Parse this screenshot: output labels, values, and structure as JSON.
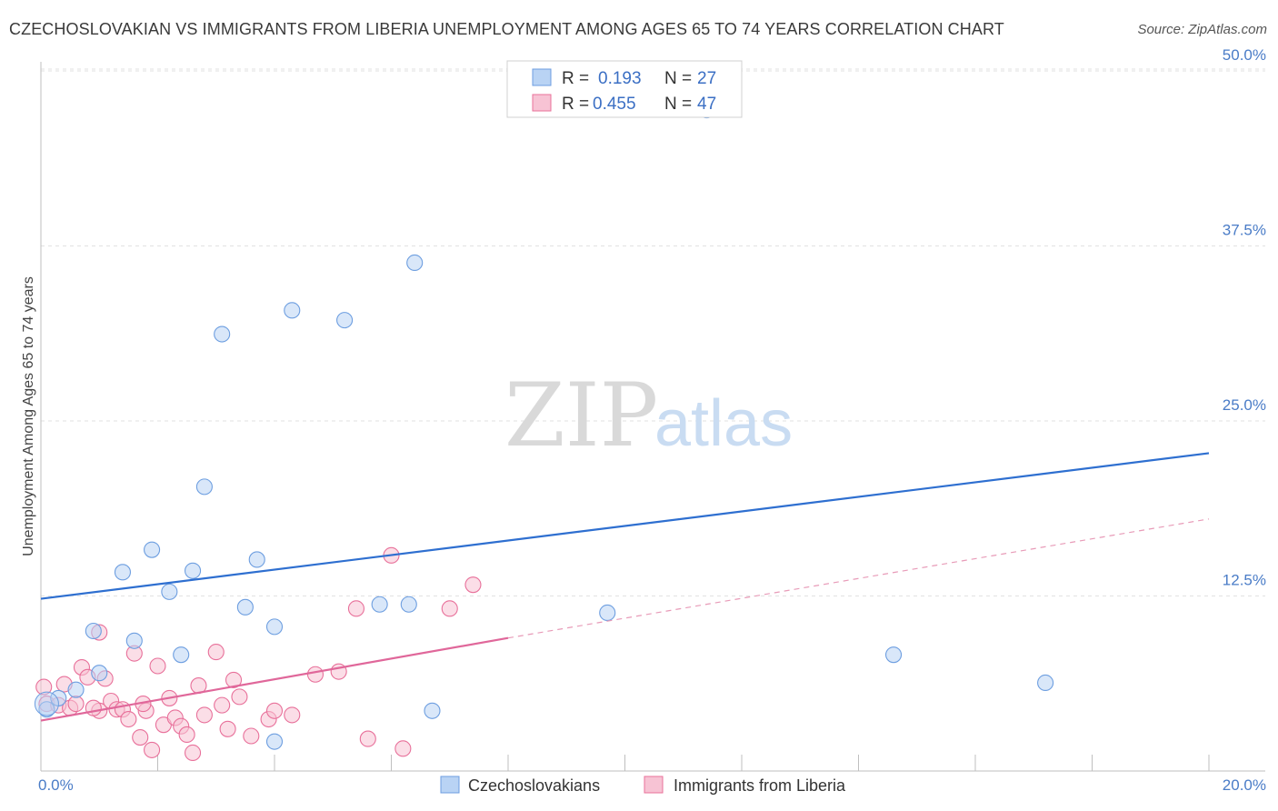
{
  "title": "CZECHOSLOVAKIAN VS IMMIGRANTS FROM LIBERIA UNEMPLOYMENT AMONG AGES 65 TO 74 YEARS CORRELATION CHART",
  "source": "Source: ZipAtlas.com",
  "watermark": {
    "zip": "ZIP",
    "atlas": "atlas"
  },
  "chart_data": {
    "type": "scatter",
    "title": "CZECHOSLOVAKIAN VS IMMIGRANTS FROM LIBERIA UNEMPLOYMENT AMONG AGES 65 TO 74 YEARS CORRELATION CHART",
    "xlabel": "",
    "ylabel": "Unemployment Among Ages 65 to 74 years",
    "xlim": [
      0,
      20
    ],
    "ylim": [
      0,
      50
    ],
    "x_tick_labels": [
      "0.0%",
      "20.0%"
    ],
    "y_ticks": [
      12.5,
      25.0,
      37.5,
      50.0
    ],
    "y_tick_labels": [
      "12.5%",
      "25.0%",
      "37.5%",
      "50.0%"
    ],
    "grid": true,
    "legend_placement": "top-center",
    "legend": [
      {
        "r_label": "R =",
        "r_value": "0.193",
        "n_label": "N =",
        "n_value": "27"
      },
      {
        "r_label": "R =",
        "r_value": "0.455",
        "n_label": "N =",
        "n_value": "47"
      }
    ],
    "series": [
      {
        "name": "Czechoslovakians",
        "color": "#6d9ee0",
        "fill": "#b9d3f4",
        "trend": {
          "x": [
            0,
            20
          ],
          "y": [
            12.3,
            22.7
          ],
          "dashed_from": null
        },
        "points": [
          [
            0.1,
            4.4
          ],
          [
            0.3,
            5.2
          ],
          [
            0.6,
            5.8
          ],
          [
            0.9,
            10.0
          ],
          [
            1.0,
            7.0
          ],
          [
            1.4,
            14.2
          ],
          [
            1.6,
            9.3
          ],
          [
            1.9,
            15.8
          ],
          [
            2.2,
            12.8
          ],
          [
            2.4,
            8.3
          ],
          [
            2.6,
            14.3
          ],
          [
            2.8,
            20.3
          ],
          [
            3.1,
            31.2
          ],
          [
            3.5,
            11.7
          ],
          [
            3.7,
            15.1
          ],
          [
            4.0,
            2.1
          ],
          [
            4.0,
            10.3
          ],
          [
            4.3,
            32.9
          ],
          [
            5.2,
            32.2
          ],
          [
            5.8,
            11.9
          ],
          [
            6.3,
            11.9
          ],
          [
            6.4,
            36.3
          ],
          [
            6.7,
            4.3
          ],
          [
            9.7,
            11.3
          ],
          [
            11.4,
            47.2
          ],
          [
            14.6,
            8.3
          ],
          [
            17.2,
            6.3
          ]
        ]
      },
      {
        "name": "Immigrants from Liberia",
        "color": "#e8709a",
        "fill": "#f7c3d4",
        "trend": {
          "x": [
            0,
            8
          ],
          "y": [
            3.6,
            9.5
          ],
          "dashed_to": [
            20,
            18.0
          ]
        },
        "points": [
          [
            0.1,
            4.8
          ],
          [
            0.3,
            4.7
          ],
          [
            0.4,
            6.2
          ],
          [
            0.5,
            4.5
          ],
          [
            0.6,
            4.8
          ],
          [
            0.7,
            7.4
          ],
          [
            0.8,
            6.7
          ],
          [
            1.0,
            4.3
          ],
          [
            1.0,
            9.9
          ],
          [
            1.2,
            5.0
          ],
          [
            1.3,
            4.4
          ],
          [
            1.4,
            4.4
          ],
          [
            1.5,
            3.7
          ],
          [
            1.6,
            8.4
          ],
          [
            1.7,
            2.4
          ],
          [
            1.8,
            4.3
          ],
          [
            1.9,
            1.5
          ],
          [
            2.0,
            7.5
          ],
          [
            2.1,
            3.3
          ],
          [
            2.2,
            5.2
          ],
          [
            2.3,
            3.8
          ],
          [
            2.4,
            3.2
          ],
          [
            2.5,
            2.6
          ],
          [
            2.6,
            1.3
          ],
          [
            2.7,
            6.1
          ],
          [
            2.8,
            4.0
          ],
          [
            3.0,
            8.5
          ],
          [
            3.1,
            4.7
          ],
          [
            3.2,
            3.0
          ],
          [
            3.4,
            5.3
          ],
          [
            3.6,
            2.5
          ],
          [
            3.9,
            3.7
          ],
          [
            4.0,
            4.3
          ],
          [
            4.3,
            4.0
          ],
          [
            4.7,
            6.9
          ],
          [
            5.1,
            7.1
          ],
          [
            5.4,
            11.6
          ],
          [
            5.6,
            2.3
          ],
          [
            6.0,
            15.4
          ],
          [
            6.2,
            1.6
          ],
          [
            7.0,
            11.6
          ],
          [
            7.4,
            13.3
          ],
          [
            0.05,
            6.0
          ],
          [
            0.9,
            4.5
          ],
          [
            1.1,
            6.6
          ],
          [
            1.75,
            4.8
          ],
          [
            3.3,
            6.5
          ]
        ]
      }
    ]
  }
}
